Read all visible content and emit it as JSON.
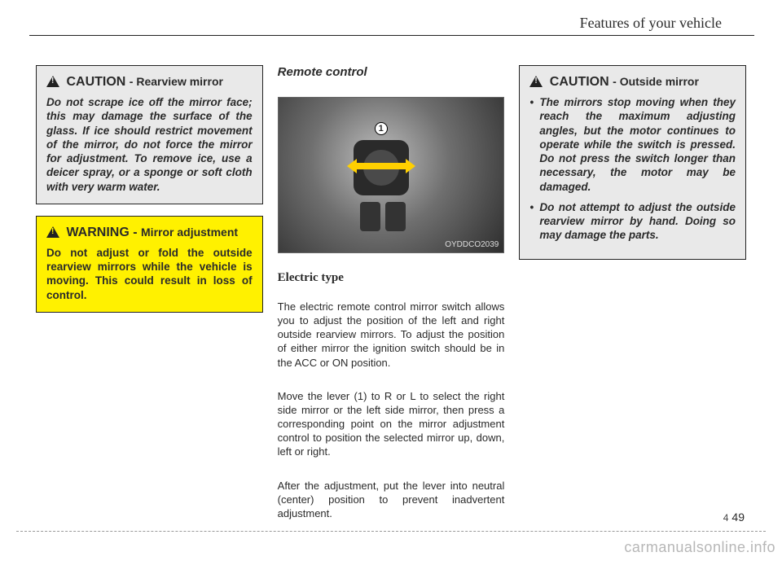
{
  "header": {
    "title": "Features of your vehicle"
  },
  "col1": {
    "caution": {
      "label": "CAUTION",
      "sub": "- Rearview mirror",
      "body": "Do not scrape ice off the mirror face; this may damage the surface of the glass. If ice should restrict movement of the mirror, do not force the mirror for adjustment. To remove ice, use a deicer spray, or a sponge or soft cloth with very warm water."
    },
    "warning": {
      "label": "WARNING -",
      "sub": "Mirror adjustment",
      "body": "Do not adjust or fold the outside rearview mirrors while the vehicle is moving. This could result in loss of control."
    }
  },
  "col2": {
    "heading": "Remote control",
    "fig_code": "OYDDCO2039",
    "callout_num": "1",
    "subhead": "Electric type",
    "p1": "The electric remote control mirror switch allows you to adjust the position of the left and right outside rearview mirrors. To adjust the position of either mirror the ignition switch should be in the ACC or ON position.",
    "p2": "Move the lever (1) to R or L to select the right side mirror or the left side mirror, then press a corresponding point on the mirror adjustment control to position the selected mirror up, down, left or right.",
    "p3": "After the adjustment, put the lever into neutral (center) position to prevent inadvertent adjustment."
  },
  "col3": {
    "caution": {
      "label": "CAUTION",
      "sub": "- Outside mirror",
      "b1": "The mirrors stop moving when they reach the maximum adjusting angles, but the motor continues to operate while the switch is pressed. Do not press the switch longer than necessary, the motor may be damaged.",
      "b2": "Do not attempt to adjust the outside rearview mirror by hand. Doing so may damage the parts."
    }
  },
  "footer": {
    "chapter": "4",
    "page": "49"
  },
  "watermark": "carmanualsonline.info"
}
